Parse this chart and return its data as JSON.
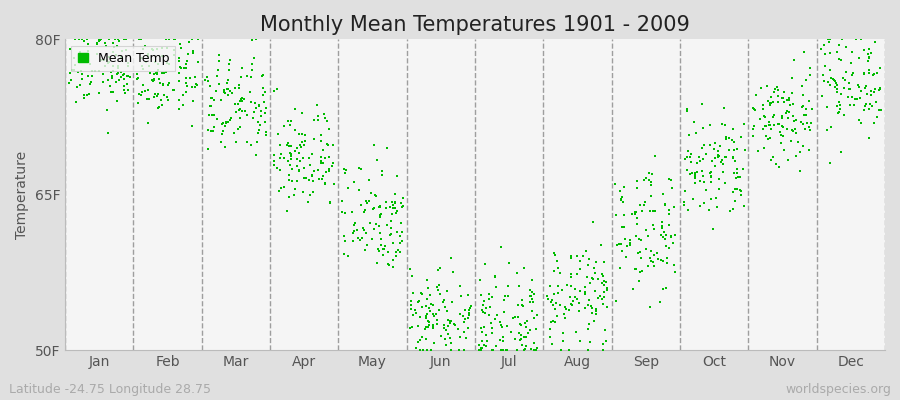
{
  "title": "Monthly Mean Temperatures 1901 - 2009",
  "ylabel": "Temperature",
  "ylim": [
    50,
    80
  ],
  "yticks": [
    50,
    65,
    80
  ],
  "ytick_labels": [
    "50F",
    "65F",
    "80F"
  ],
  "months": [
    "Jan",
    "Feb",
    "Mar",
    "Apr",
    "May",
    "Jun",
    "Jul",
    "Aug",
    "Sep",
    "Oct",
    "Nov",
    "Dec"
  ],
  "mean_temps": [
    77.5,
    76.5,
    73.5,
    68.5,
    63.0,
    53.5,
    52.5,
    55.0,
    61.5,
    67.5,
    72.5,
    76.0
  ],
  "spreads": [
    2.2,
    2.0,
    2.5,
    2.5,
    2.8,
    2.2,
    2.2,
    2.5,
    3.0,
    2.8,
    2.5,
    2.5
  ],
  "n_years": 109,
  "dot_color": "#00bb00",
  "dot_size": 4,
  "figure_bg": "#e0e0e0",
  "plot_bg": "#f5f5f5",
  "title_fontsize": 15,
  "axis_label_fontsize": 10,
  "tick_fontsize": 10,
  "legend_label": "Mean Temp",
  "legend_marker_color": "#00bb00",
  "footer_left": "Latitude -24.75 Longitude 28.75",
  "footer_right": "worldspecies.org",
  "footer_fontsize": 9,
  "footer_color": "#aaaaaa",
  "vline_color": "#888888",
  "vline_lw": 1.0
}
